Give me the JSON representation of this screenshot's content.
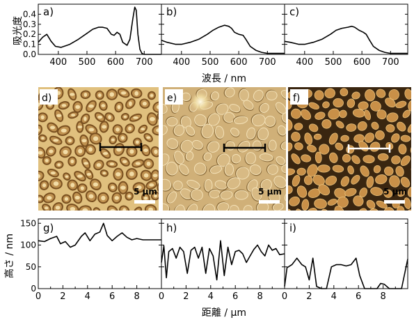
{
  "chart_data": [
    {
      "type": "line",
      "label": "a)",
      "xlim": [
        330,
        760
      ],
      "ylim": [
        0,
        0.5
      ],
      "xticks": [
        400,
        500,
        600,
        700
      ],
      "yticks": [
        0,
        0.1,
        0.2,
        0.3,
        0.4
      ],
      "ylabel": "吸光度",
      "x": [
        330,
        345,
        360,
        375,
        390,
        410,
        440,
        470,
        500,
        520,
        540,
        555,
        570,
        585,
        595,
        605,
        615,
        625,
        640,
        650,
        660,
        667,
        672,
        678,
        685,
        692,
        700,
        720,
        760
      ],
      "y": [
        0.12,
        0.17,
        0.2,
        0.13,
        0.08,
        0.07,
        0.1,
        0.15,
        0.21,
        0.25,
        0.27,
        0.27,
        0.26,
        0.2,
        0.19,
        0.22,
        0.2,
        0.12,
        0.09,
        0.15,
        0.35,
        0.47,
        0.44,
        0.2,
        0.05,
        0.01,
        0,
        0,
        0
      ]
    },
    {
      "type": "line",
      "label": "b)",
      "xlim": [
        330,
        760
      ],
      "ylim": [
        0,
        0.5
      ],
      "xticks": [
        400,
        500,
        600,
        700
      ],
      "x": [
        330,
        350,
        380,
        400,
        430,
        460,
        490,
        510,
        530,
        550,
        565,
        575,
        585,
        600,
        615,
        625,
        640,
        660,
        680,
        700,
        730,
        760
      ],
      "y": [
        0.14,
        0.12,
        0.1,
        0.1,
        0.12,
        0.15,
        0.2,
        0.24,
        0.27,
        0.29,
        0.28,
        0.26,
        0.22,
        0.2,
        0.19,
        0.15,
        0.08,
        0.04,
        0.02,
        0.01,
        0.01,
        0.01
      ]
    },
    {
      "type": "line",
      "label": "c)",
      "xlim": [
        330,
        760
      ],
      "ylim": [
        0,
        0.5
      ],
      "xticks": [
        400,
        500,
        600,
        700
      ],
      "xlabel": "波長 / nm",
      "x": [
        330,
        350,
        380,
        400,
        430,
        460,
        490,
        510,
        530,
        550,
        565,
        575,
        590,
        605,
        615,
        625,
        640,
        660,
        680,
        700,
        730,
        760
      ],
      "y": [
        0.13,
        0.12,
        0.1,
        0.1,
        0.12,
        0.15,
        0.2,
        0.24,
        0.26,
        0.27,
        0.28,
        0.27,
        0.24,
        0.22,
        0.2,
        0.15,
        0.08,
        0.04,
        0.02,
        0.01,
        0.01,
        0.01
      ]
    },
    {
      "type": "line",
      "label": "g)",
      "xlim": [
        0,
        10
      ],
      "ylim": [
        0,
        160
      ],
      "xticks": [
        0,
        2,
        4,
        6,
        8
      ],
      "yticks": [
        0,
        50,
        100,
        150
      ],
      "ylabel": "高さ / nm",
      "x": [
        0,
        0.5,
        1,
        1.5,
        1.8,
        2.2,
        2.6,
        3,
        3.5,
        3.8,
        4.2,
        4.6,
        5,
        5.3,
        5.6,
        6,
        6.4,
        6.8,
        7.2,
        7.6,
        8,
        8.5,
        9,
        9.5,
        10
      ],
      "y": [
        110,
        108,
        115,
        120,
        103,
        108,
        95,
        100,
        120,
        128,
        110,
        125,
        130,
        150,
        122,
        110,
        120,
        128,
        118,
        112,
        115,
        112,
        112,
        112,
        112
      ]
    },
    {
      "type": "line",
      "label": "h)",
      "xlim": [
        0,
        10
      ],
      "ylim": [
        0,
        160
      ],
      "xticks": [
        0,
        2,
        4,
        6,
        8
      ],
      "x": [
        0,
        0.2,
        0.4,
        0.6,
        0.9,
        1.2,
        1.5,
        1.8,
        2.1,
        2.4,
        2.7,
        3,
        3.3,
        3.6,
        3.9,
        4.2,
        4.5,
        4.8,
        5.1,
        5.4,
        5.7,
        6,
        6.3,
        6.6,
        6.9,
        7.2,
        7.5,
        7.8,
        8.1,
        8.4,
        8.7,
        9,
        9.3,
        9.6,
        10
      ],
      "y": [
        60,
        98,
        25,
        85,
        92,
        70,
        95,
        85,
        35,
        88,
        95,
        70,
        95,
        35,
        92,
        75,
        20,
        110,
        30,
        95,
        55,
        85,
        88,
        80,
        60,
        75,
        90,
        100,
        85,
        75,
        100,
        88,
        92,
        78,
        80
      ]
    },
    {
      "type": "line",
      "label": "i)",
      "xlim": [
        0,
        10
      ],
      "ylim": [
        0,
        160
      ],
      "xticks": [
        0,
        2,
        4,
        6,
        8
      ],
      "xlabel": "距離 / μm",
      "x": [
        0,
        0.2,
        0.6,
        1,
        1.4,
        1.7,
        2,
        2.3,
        2.6,
        3,
        3.4,
        3.8,
        4.2,
        4.6,
        5,
        5.4,
        5.8,
        6.1,
        6.5,
        7,
        7.5,
        7.8,
        8.1,
        8.5,
        9,
        9.5,
        10
      ],
      "y": [
        5,
        48,
        55,
        70,
        55,
        50,
        20,
        70,
        5,
        0,
        0,
        50,
        55,
        55,
        52,
        55,
        70,
        30,
        0,
        0,
        0,
        12,
        10,
        0,
        0,
        0,
        68
      ]
    }
  ],
  "afm_images": [
    {
      "label": "d)",
      "scale_text": "5 μm",
      "theme": "dark-rings-on-light"
    },
    {
      "label": "e)",
      "scale_text": "5 μm",
      "theme": "relief-outlines"
    },
    {
      "label": "f)",
      "scale_text": "5 μm",
      "theme": "light-islands-on-dark"
    }
  ],
  "colors": {
    "afm_light": "#e0c07e",
    "afm_mid": "#c09250",
    "afm_ring_dark": "#7a5020",
    "afm_bg_dark": "#3a2610",
    "afm_island": "#c99048"
  }
}
